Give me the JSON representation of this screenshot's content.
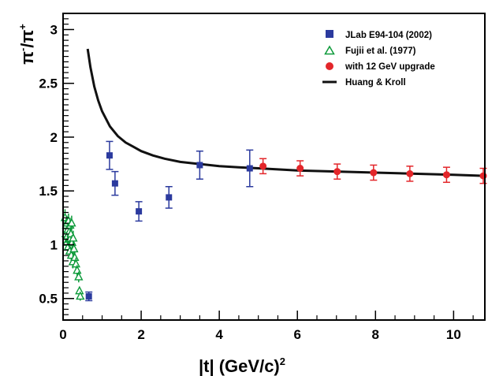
{
  "chart_data": {
    "type": "scatter",
    "xlim": [
      0,
      10.8
    ],
    "ylim": [
      0.3,
      3.15
    ],
    "x_ticks": [
      {
        "value": 0,
        "label": "0"
      },
      {
        "value": 2,
        "label": "2"
      },
      {
        "value": 4,
        "label": "4"
      },
      {
        "value": 6,
        "label": "6"
      },
      {
        "value": 8,
        "label": "8"
      },
      {
        "value": 10,
        "label": "10"
      }
    ],
    "y_ticks": [
      {
        "value": 0.5,
        "label": "0.5"
      },
      {
        "value": 1,
        "label": "1"
      },
      {
        "value": 1.5,
        "label": "1.5"
      },
      {
        "value": 2,
        "label": "2"
      },
      {
        "value": 2.5,
        "label": "2.5"
      },
      {
        "value": 3,
        "label": "3"
      }
    ],
    "xlabel": {
      "main": "|t| (GeV/c)",
      "sup": "2"
    },
    "ylabel": {
      "pim": "π",
      "pim_sup": "-",
      "slash": "/",
      "pip": "π",
      "pip_sup": "+"
    },
    "grid": false,
    "legend_position": "top-right",
    "series": [
      {
        "name": "JLab E94-104 (2002)",
        "marker": "square",
        "color": "#2b3a9e",
        "points": [
          {
            "x": 0.66,
            "y": 0.52,
            "err": 0.04
          },
          {
            "x": 1.19,
            "y": 1.83,
            "err": 0.13
          },
          {
            "x": 1.33,
            "y": 1.57,
            "err": 0.11
          },
          {
            "x": 1.94,
            "y": 1.31,
            "err": 0.09
          },
          {
            "x": 2.71,
            "y": 1.44,
            "err": 0.1
          },
          {
            "x": 3.5,
            "y": 1.74,
            "err": 0.13
          },
          {
            "x": 4.78,
            "y": 1.71,
            "err": 0.17
          }
        ]
      },
      {
        "name": "Fujii et al. (1977)",
        "marker": "triangle-open",
        "color": "#0d9a3a",
        "points": [
          {
            "x": 0.05,
            "y": 1.25,
            "err": 0.08
          },
          {
            "x": 0.07,
            "y": 1.1,
            "err": 0.07
          },
          {
            "x": 0.08,
            "y": 1.18,
            "err": 0.07
          },
          {
            "x": 0.09,
            "y": 1.02,
            "err": 0.07
          },
          {
            "x": 0.1,
            "y": 1.2,
            "err": 0.07
          },
          {
            "x": 0.11,
            "y": 1.08,
            "err": 0.07
          },
          {
            "x": 0.12,
            "y": 1.14,
            "err": 0.07
          },
          {
            "x": 0.13,
            "y": 0.98,
            "err": 0.07
          },
          {
            "x": 0.14,
            "y": 1.22,
            "err": 0.07
          },
          {
            "x": 0.15,
            "y": 1.05,
            "err": 0.07
          },
          {
            "x": 0.16,
            "y": 1.12,
            "err": 0.07
          },
          {
            "x": 0.17,
            "y": 0.94,
            "err": 0.07
          },
          {
            "x": 0.18,
            "y": 1.18,
            "err": 0.07
          },
          {
            "x": 0.19,
            "y": 1.06,
            "err": 0.07
          },
          {
            "x": 0.2,
            "y": 1.1,
            "err": 0.07
          },
          {
            "x": 0.21,
            "y": 0.9,
            "err": 0.07
          },
          {
            "x": 0.22,
            "y": 1.2,
            "err": 0.07
          },
          {
            "x": 0.23,
            "y": 1.02,
            "err": 0.07
          },
          {
            "x": 0.25,
            "y": 0.84,
            "err": 0.06
          },
          {
            "x": 0.26,
            "y": 1.06,
            "err": 0.07
          },
          {
            "x": 0.28,
            "y": 0.96,
            "err": 0.06
          },
          {
            "x": 0.3,
            "y": 0.88,
            "err": 0.06
          },
          {
            "x": 0.33,
            "y": 0.82,
            "err": 0.06
          },
          {
            "x": 0.36,
            "y": 0.76,
            "err": 0.05
          },
          {
            "x": 0.4,
            "y": 0.7,
            "err": 0.05
          },
          {
            "x": 0.42,
            "y": 0.57,
            "err": 0.04
          },
          {
            "x": 0.44,
            "y": 0.52,
            "err": 0.04
          }
        ]
      },
      {
        "name": "with 12 GeV upgrade",
        "marker": "circle",
        "color": "#e3262a",
        "points": [
          {
            "x": 5.12,
            "y": 1.73,
            "err": 0.07
          },
          {
            "x": 6.07,
            "y": 1.71,
            "err": 0.07
          },
          {
            "x": 7.02,
            "y": 1.68,
            "err": 0.07
          },
          {
            "x": 7.95,
            "y": 1.67,
            "err": 0.07
          },
          {
            "x": 8.88,
            "y": 1.66,
            "err": 0.07
          },
          {
            "x": 9.82,
            "y": 1.65,
            "err": 0.07
          },
          {
            "x": 10.76,
            "y": 1.64,
            "err": 0.07
          }
        ]
      }
    ],
    "curve": {
      "name": "Huang & Kroll",
      "color": "#111111",
      "x": [
        0.63,
        0.7,
        0.8,
        0.9,
        1.0,
        1.2,
        1.4,
        1.6,
        1.8,
        2.0,
        2.3,
        2.6,
        3.0,
        3.5,
        4.0,
        4.5,
        5.0,
        5.5,
        6.0,
        7.0,
        8.0,
        9.0,
        10.0,
        10.8
      ],
      "y": [
        2.82,
        2.65,
        2.47,
        2.34,
        2.24,
        2.1,
        2.01,
        1.95,
        1.91,
        1.87,
        1.83,
        1.8,
        1.77,
        1.75,
        1.73,
        1.72,
        1.71,
        1.7,
        1.69,
        1.68,
        1.67,
        1.66,
        1.65,
        1.64
      ]
    }
  }
}
